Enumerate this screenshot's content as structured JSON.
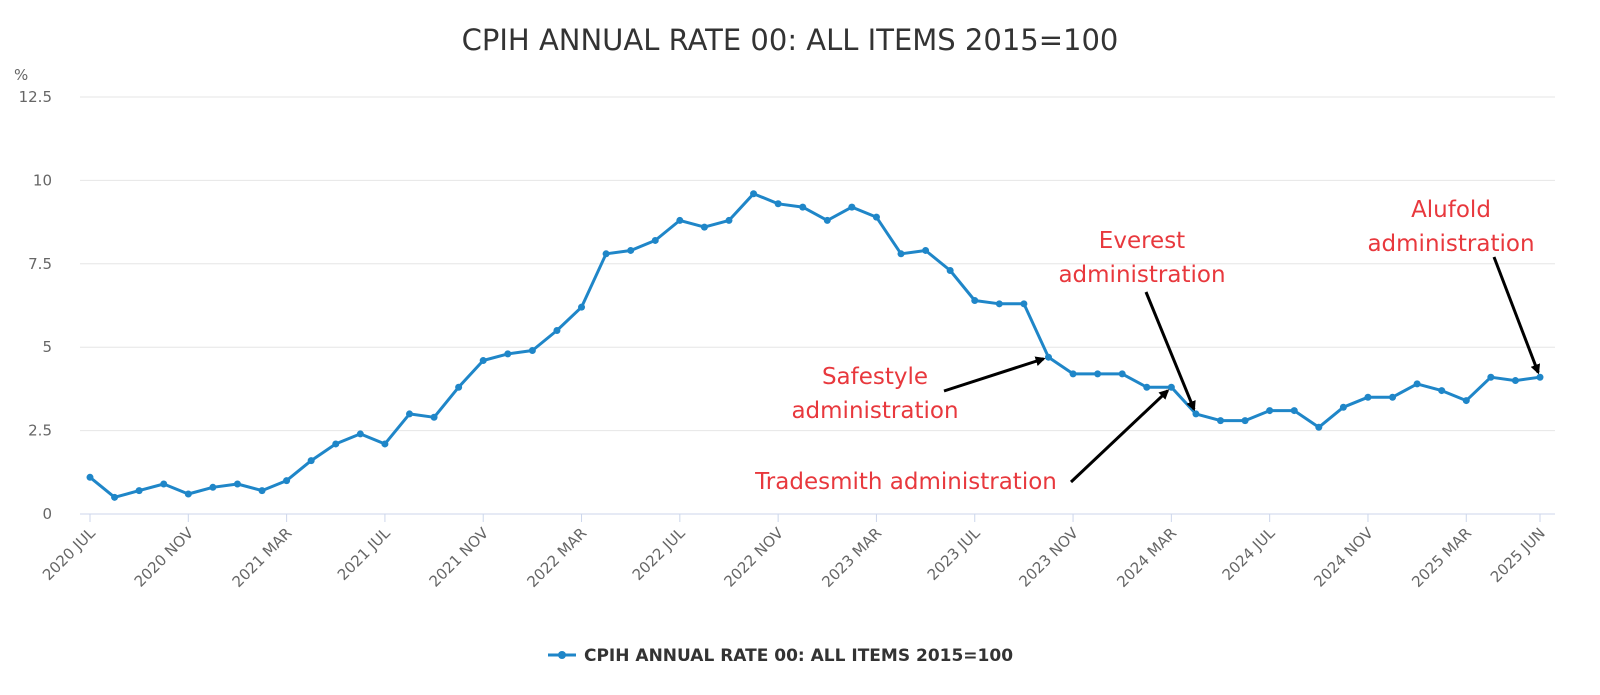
{
  "chart_data": {
    "type": "line",
    "title": "CPIH ANNUAL RATE 00: ALL ITEMS 2015=100",
    "y_unit": "%",
    "ylim": [
      0,
      12.5
    ],
    "yticks": [
      "0",
      "2.5",
      "5",
      "7.5",
      "10",
      "12.5"
    ],
    "ytick_values": [
      0,
      2.5,
      5,
      7.5,
      10,
      12.5
    ],
    "grid": true,
    "legend_position": "bottom-center",
    "x": [
      "2020 JUL",
      "2020 AUG",
      "2020 SEP",
      "2020 OCT",
      "2020 NOV",
      "2020 DEC",
      "2021 JAN",
      "2021 FEB",
      "2021 MAR",
      "2021 APR",
      "2021 MAY",
      "2021 JUN",
      "2021 JUL",
      "2021 AUG",
      "2021 SEP",
      "2021 OCT",
      "2021 NOV",
      "2021 DEC",
      "2022 JAN",
      "2022 FEB",
      "2022 MAR",
      "2022 APR",
      "2022 MAY",
      "2022 JUN",
      "2022 JUL",
      "2022 AUG",
      "2022 SEP",
      "2022 OCT",
      "2022 NOV",
      "2022 DEC",
      "2023 JAN",
      "2023 FEB",
      "2023 MAR",
      "2023 APR",
      "2023 MAY",
      "2023 JUN",
      "2023 JUL",
      "2023 AUG",
      "2023 SEP",
      "2023 OCT",
      "2023 NOV",
      "2023 DEC",
      "2024 JAN",
      "2024 FEB",
      "2024 MAR",
      "2024 APR",
      "2024 MAY",
      "2024 JUN",
      "2024 JUL",
      "2024 AUG",
      "2024 SEP",
      "2024 OCT",
      "2024 NOV",
      "2024 DEC",
      "2025 JAN",
      "2025 FEB",
      "2025 MAR",
      "2025 APR",
      "2025 MAY",
      "2025 JUN"
    ],
    "xtick_labels": [
      "2020 JUL",
      "2020 NOV",
      "2021 MAR",
      "2021 JUL",
      "2021 NOV",
      "2022 MAR",
      "2022 JUL",
      "2022 NOV",
      "2023 MAR",
      "2023 JUL",
      "2023 NOV",
      "2024 MAR",
      "2024 JUL",
      "2024 NOV",
      "2025 MAR",
      "2025 JUN"
    ],
    "series": [
      {
        "name": "CPIH ANNUAL RATE 00: ALL ITEMS 2015=100",
        "color": "#1f86c8",
        "values": [
          1.1,
          0.5,
          0.7,
          0.9,
          0.6,
          0.8,
          0.9,
          0.7,
          1.0,
          1.6,
          2.1,
          2.4,
          2.1,
          3.0,
          2.9,
          3.8,
          4.6,
          4.8,
          4.9,
          5.5,
          6.2,
          7.8,
          7.9,
          8.2,
          8.8,
          8.6,
          8.8,
          9.6,
          9.3,
          9.2,
          8.8,
          9.2,
          8.9,
          7.8,
          7.9,
          7.3,
          6.4,
          6.3,
          6.3,
          4.7,
          4.2,
          4.2,
          4.2,
          3.8,
          3.8,
          3.0,
          2.8,
          2.8,
          3.1,
          3.1,
          2.6,
          3.2,
          3.5,
          3.5,
          3.9,
          3.7,
          3.4,
          4.1,
          4.0,
          4.1
        ]
      }
    ],
    "annotations": [
      {
        "key": "safestyle",
        "lines": [
          "Safestyle",
          "administration"
        ],
        "color": "#e8383d",
        "x": "2023 OCT",
        "y": 4.7
      },
      {
        "key": "tradesmith",
        "lines": [
          "Tradesmith administration"
        ],
        "color": "#e8383d",
        "x": "2024 MAR",
        "y": 3.8
      },
      {
        "key": "everest",
        "lines": [
          "Everest",
          "administration"
        ],
        "color": "#e8383d",
        "x": "2024 APR",
        "y": 3.0
      },
      {
        "key": "alufold",
        "lines": [
          "Alufold",
          "administration"
        ],
        "color": "#e8383d",
        "x": "2025 JUN",
        "y": 4.1
      }
    ]
  }
}
